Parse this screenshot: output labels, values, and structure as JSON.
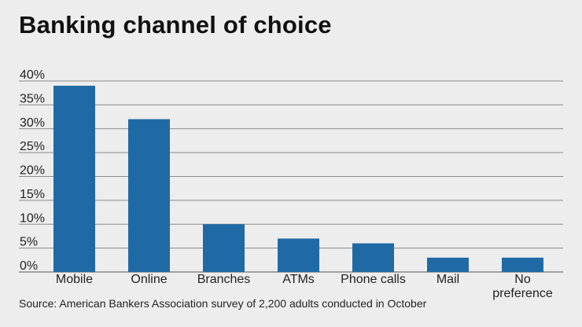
{
  "chart_data": {
    "type": "bar",
    "title": "Banking channel of choice",
    "categories": [
      "Mobile",
      "Online",
      "Branches",
      "ATMs",
      "Phone calls",
      "Mail",
      "No preference"
    ],
    "category_lines": [
      [
        "Mobile"
      ],
      [
        "Online"
      ],
      [
        "Branches"
      ],
      [
        "ATMs"
      ],
      [
        "Phone calls"
      ],
      [
        "Mail"
      ],
      [
        "No",
        "preference"
      ]
    ],
    "values": [
      39,
      32,
      10,
      7,
      6,
      3,
      3
    ],
    "ylim": [
      0,
      40
    ],
    "yticks": [
      0,
      5,
      10,
      15,
      20,
      25,
      30,
      35,
      40
    ],
    "ytick_labels": [
      "0%",
      "5%",
      "10%",
      "15%",
      "20%",
      "25%",
      "30%",
      "35%",
      "40%"
    ],
    "xlabel": "",
    "ylabel": "",
    "grid": true,
    "bar_color": "#1f6aa5"
  },
  "source": "Source: American Bankers Association survey of 2,200 adults conducted in October"
}
